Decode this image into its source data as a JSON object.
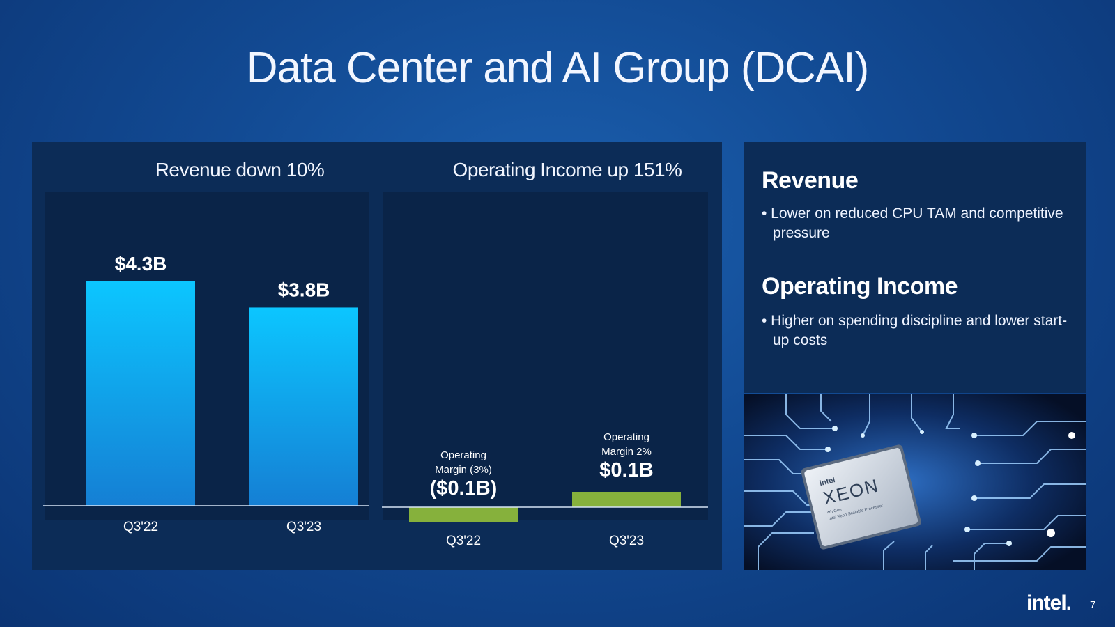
{
  "slide": {
    "title": "Data Center and AI Group (DCAI)",
    "brand": "intel.",
    "page_number": "7"
  },
  "colors": {
    "revenue_bar_top": "#0cc6ff",
    "revenue_bar_bottom": "#157fd4",
    "income_bar": "#86b13c",
    "panel": "#0c2c57",
    "inner_panel": "#0a2448"
  },
  "chart_data": [
    {
      "type": "bar",
      "title": "Revenue down 10%",
      "categories": [
        "Q3'22",
        "Q3'23"
      ],
      "values": [
        4.3,
        3.8
      ],
      "value_labels": [
        "$4.3B",
        "$3.8B"
      ],
      "unit": "$B",
      "ylim": [
        0,
        4.3
      ]
    },
    {
      "type": "bar",
      "title": "Operating Income up 151%",
      "categories": [
        "Q3'22",
        "Q3'23"
      ],
      "values": [
        -0.1,
        0.1
      ],
      "value_labels": [
        "($0.1B)",
        "$0.1B"
      ],
      "annotations": [
        [
          "Operating",
          "Margin (3%)"
        ],
        [
          "Operating",
          "Margin 2%"
        ]
      ],
      "unit": "$B"
    }
  ],
  "info": {
    "revenue_heading": "Revenue",
    "revenue_bullet": "• Lower on reduced CPU TAM and competitive pressure",
    "income_heading": "Operating Income",
    "income_bullet": "• Higher on spending discipline and lower start-up costs"
  },
  "image": {
    "chip_brand": "intel",
    "chip_name": "XEON",
    "chip_caption_1": "4th Gen",
    "chip_caption_2": "Intel Xeon Scalable Processor"
  }
}
